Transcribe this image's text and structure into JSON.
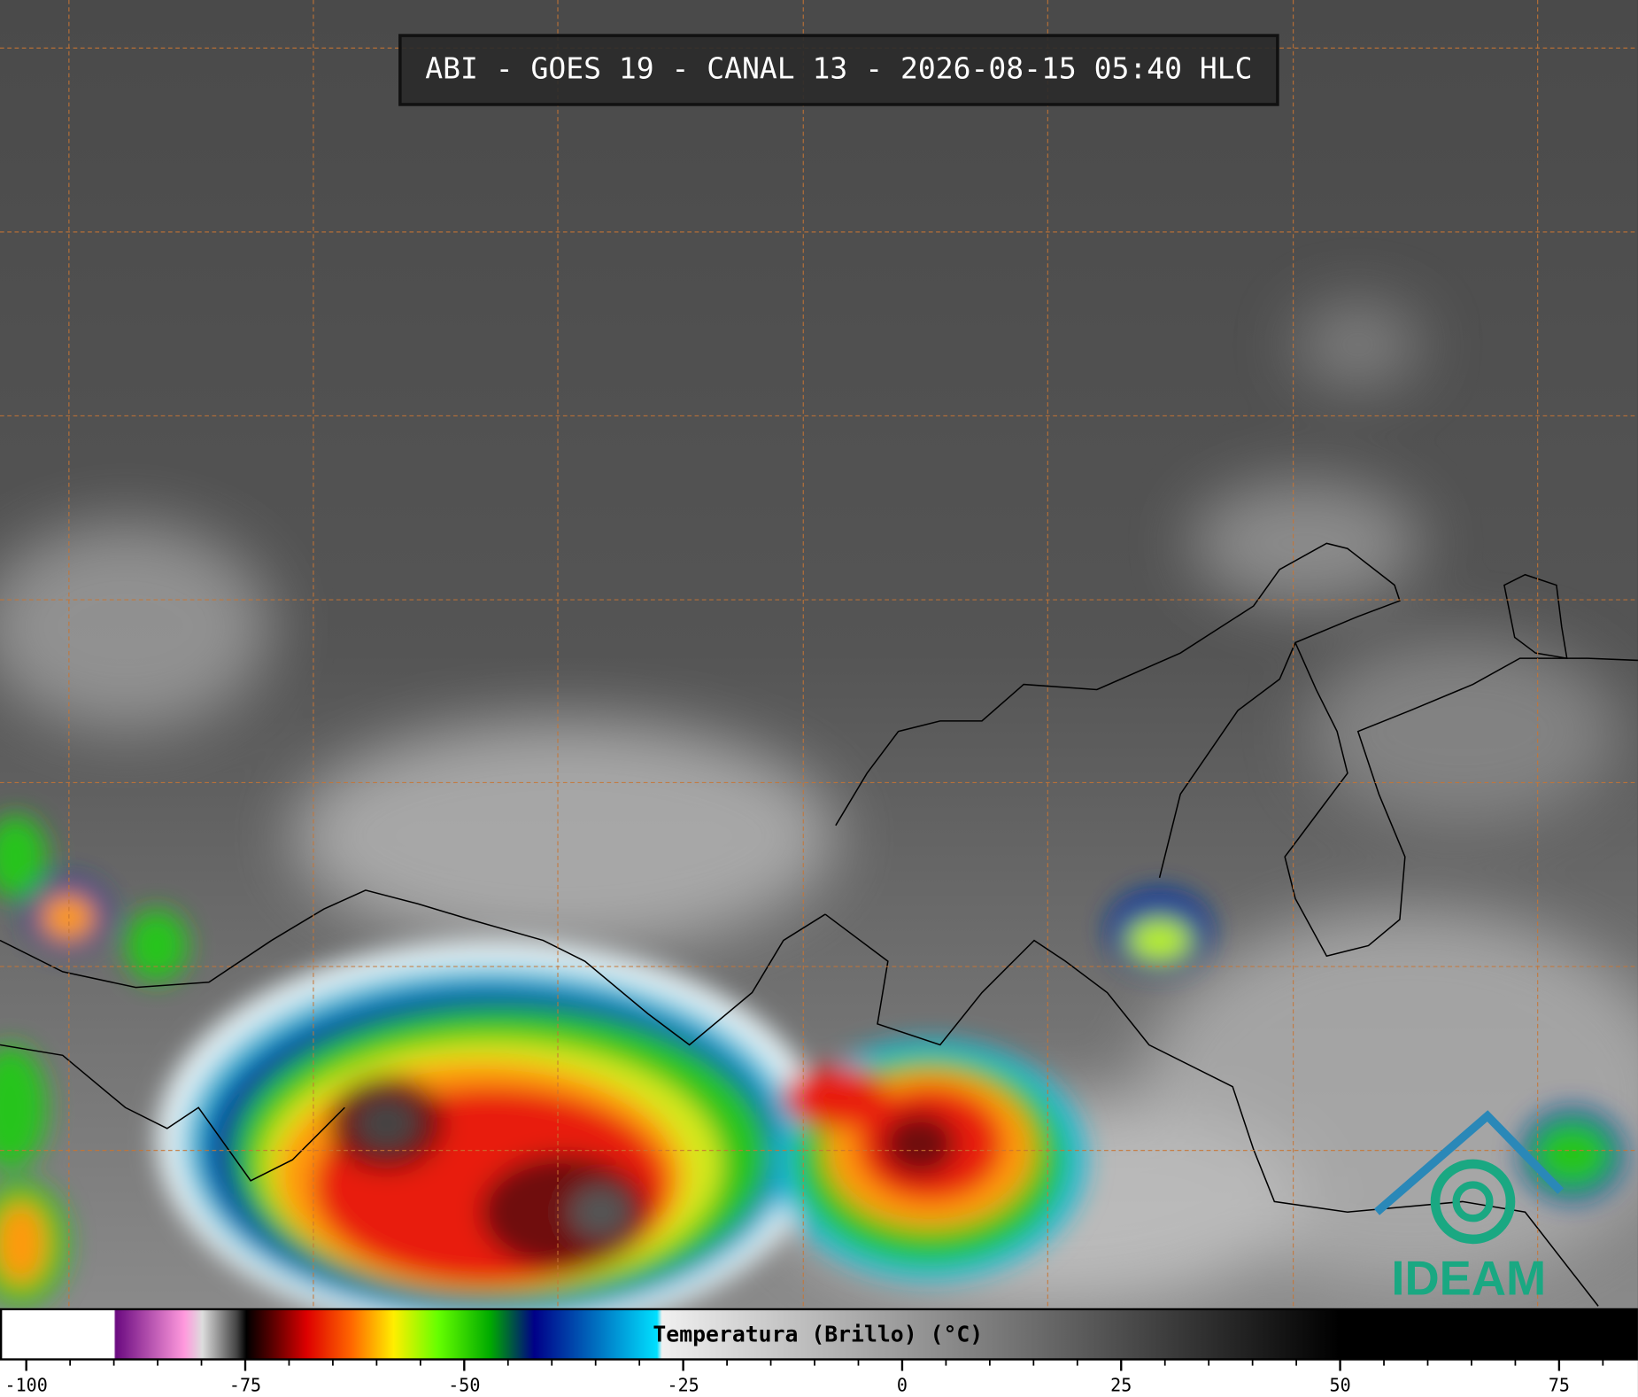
{
  "header": {
    "title": "ABI - GOES 19 - CANAL 13 - 2026-08-15 05:40 HLC"
  },
  "colorbar": {
    "label": "Temperatura (Brillo) (°C)",
    "xlim": [
      -103,
      84
    ],
    "ticks": [
      -100,
      -75,
      -50,
      -25,
      0,
      25,
      50,
      75
    ],
    "minor_ticks": [
      -95,
      -90,
      -85,
      -80,
      -70,
      -65,
      -60,
      -55,
      -45,
      -40,
      -35,
      -30,
      -20,
      -15,
      -10,
      -5,
      5,
      10,
      15,
      20,
      30,
      35,
      40,
      45,
      55,
      60,
      65,
      70,
      80
    ]
  },
  "logo": {
    "text": "IDEAM"
  }
}
